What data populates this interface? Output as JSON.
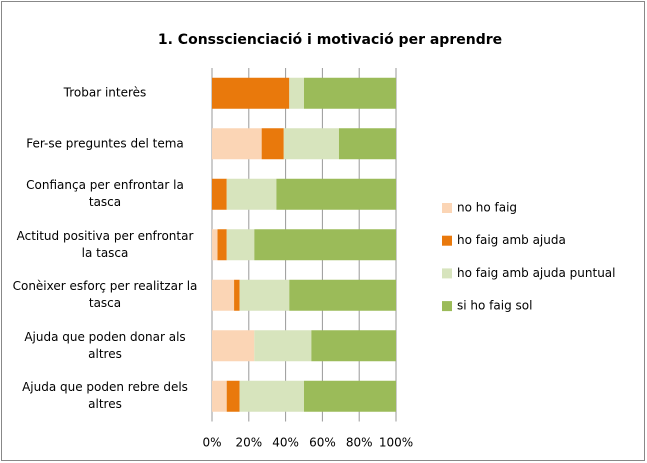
{
  "chart_data": {
    "type": "stacked_bar_horizontal",
    "title": "1. Consscienciació i motivació per aprendre",
    "categories": [
      "Trobar interès",
      "Fer-se preguntes del tema",
      "Confiança per enfrontar la tasca",
      "Actitud positiva per enfrontar la tasca",
      "Conèixer esforç per realitzar la tasca",
      "Ajuda que poden donar als altres",
      "Ajuda que poden rebre dels altres"
    ],
    "series": [
      {
        "name": "no ho faig",
        "color": "#fbd5b5",
        "values": [
          0,
          27,
          0,
          3,
          12,
          23,
          8
        ]
      },
      {
        "name": "ho faig amb ajuda",
        "color": "#e9790c",
        "values": [
          42,
          12,
          8,
          5,
          3,
          0,
          7
        ]
      },
      {
        "name": "ho faig amb ajuda puntual",
        "color": "#d7e4bd",
        "values": [
          8,
          30,
          27,
          15,
          27,
          31,
          35
        ]
      },
      {
        "name": "si ho faig sol",
        "color": "#9bbb59",
        "values": [
          50,
          31,
          65,
          77,
          58,
          46,
          50
        ]
      }
    ],
    "xlim": [
      0,
      100
    ],
    "xticks": [
      {
        "value": 0,
        "label": "0%"
      },
      {
        "value": 20,
        "label": "20%"
      },
      {
        "value": 40,
        "label": "40%"
      },
      {
        "value": 60,
        "label": "60%"
      },
      {
        "value": 80,
        "label": "80%"
      },
      {
        "value": 100,
        "label": "100%"
      }
    ],
    "grid": true,
    "legend": "right"
  }
}
